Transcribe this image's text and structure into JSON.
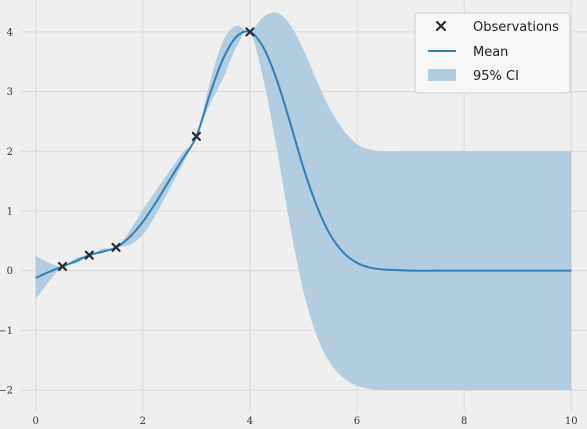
{
  "chart_data": {
    "type": "line",
    "xlim": [
      -0.2,
      10.2
    ],
    "ylim": [
      -2.3,
      4.45
    ],
    "xticks": [
      0,
      2,
      4,
      6,
      8,
      10
    ],
    "yticks": [
      -2,
      -1,
      0,
      1,
      2,
      3,
      4
    ],
    "xtick_labels": [
      "0",
      "2",
      "4",
      "6",
      "8",
      "10"
    ],
    "ytick_labels": [
      "−2",
      "−1",
      "0",
      "1",
      "2",
      "3",
      "4"
    ],
    "grid": true,
    "legend_position": "top-right",
    "legend": {
      "observations": "Observations",
      "mean": "Mean",
      "ci": "95% CI"
    },
    "observations": {
      "x": [
        0.5,
        1.0,
        1.5,
        3.0,
        4.0
      ],
      "y": [
        0.07,
        0.26,
        0.39,
        2.25,
        4.0
      ]
    },
    "mean": {
      "x": [
        0,
        0.25,
        0.5,
        0.75,
        1.0,
        1.25,
        1.5,
        1.75,
        2.0,
        2.25,
        2.5,
        2.75,
        3.0,
        3.25,
        3.5,
        3.75,
        4.0,
        4.25,
        4.5,
        4.75,
        5.0,
        5.25,
        5.5,
        5.75,
        6.0,
        6.25,
        6.5,
        6.75,
        7.0,
        7.5,
        8.0,
        9.0,
        10.0
      ],
      "y": [
        -0.12,
        -0.02,
        0.07,
        0.16,
        0.26,
        0.32,
        0.39,
        0.56,
        0.82,
        1.15,
        1.52,
        1.88,
        2.25,
        2.95,
        3.55,
        3.92,
        4.0,
        3.74,
        3.2,
        2.48,
        1.72,
        1.08,
        0.6,
        0.3,
        0.13,
        0.05,
        0.02,
        0.01,
        0.0,
        0.0,
        0.0,
        0.0,
        0.0
      ]
    },
    "ci_upper": {
      "x": [
        0,
        0.25,
        0.5,
        0.75,
        1.0,
        1.25,
        1.5,
        1.75,
        2.0,
        2.25,
        2.5,
        2.75,
        3.0,
        3.25,
        3.5,
        3.75,
        4.0,
        4.25,
        4.5,
        4.75,
        5.0,
        5.25,
        5.5,
        5.75,
        6.0,
        6.25,
        6.5,
        7.0,
        7.5,
        8.0,
        9.0,
        10.0
      ],
      "y": [
        0.25,
        0.13,
        0.07,
        0.21,
        0.26,
        0.37,
        0.39,
        0.66,
        1.02,
        1.35,
        1.67,
        1.98,
        2.25,
        3.15,
        3.85,
        4.1,
        4.0,
        4.25,
        4.32,
        4.12,
        3.7,
        3.18,
        2.7,
        2.35,
        2.12,
        2.03,
        2.0,
        2.0,
        2.0,
        2.0,
        2.0,
        2.0
      ]
    },
    "ci_lower": {
      "x": [
        0,
        0.25,
        0.5,
        0.75,
        1.0,
        1.25,
        1.5,
        1.75,
        2.0,
        2.25,
        2.5,
        2.75,
        3.0,
        3.25,
        3.5,
        3.75,
        4.0,
        4.25,
        4.5,
        4.75,
        5.0,
        5.25,
        5.5,
        5.75,
        6.0,
        6.25,
        6.5,
        7.0,
        7.5,
        8.0,
        9.0,
        10.0
      ],
      "y": [
        -0.48,
        -0.18,
        0.07,
        0.12,
        0.26,
        0.29,
        0.39,
        0.43,
        0.6,
        0.95,
        1.37,
        1.79,
        2.25,
        2.78,
        3.22,
        3.75,
        4.0,
        3.2,
        2.05,
        0.75,
        -0.35,
        -1.1,
        -1.55,
        -1.8,
        -1.93,
        -1.98,
        -2.0,
        -2.0,
        -2.0,
        -2.0,
        -2.0,
        -2.0
      ]
    },
    "colors": {
      "background": "#efefef",
      "grid": "#d9d9d9",
      "mean": "#2f7fb8",
      "ci": "#b3cde0",
      "observations": "#2b2b2b",
      "legend_background": "#f7f7f7"
    }
  }
}
